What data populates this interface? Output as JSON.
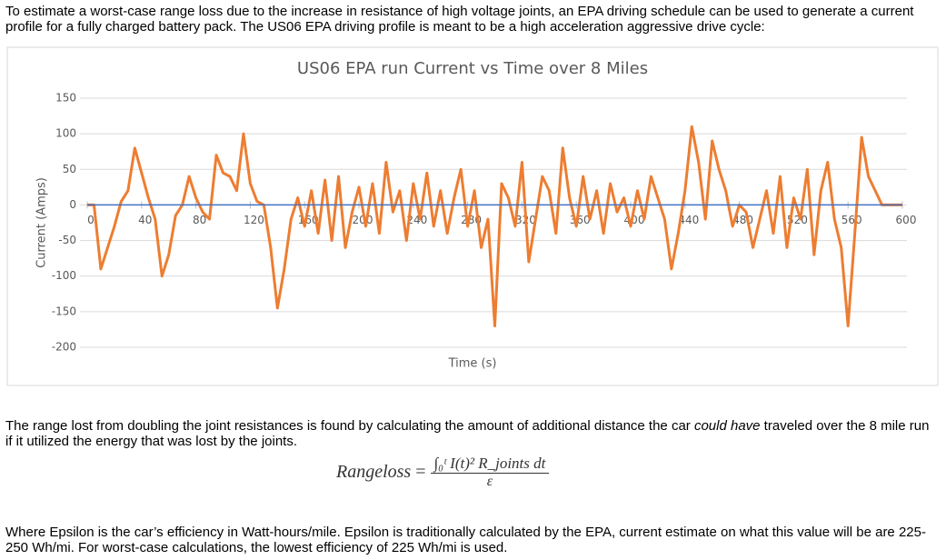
{
  "intro": "To estimate a worst-case range loss due to the increase in resistance of high voltage joints, an EPA driving schedule can be used to generate a current profile for a fully charged battery pack. The US06 EPA driving profile is meant to be a high acceleration aggressive drive cycle:",
  "chart_data": {
    "type": "line",
    "title": "US06 EPA run Current vs Time over 8 Miles",
    "x_label": "Time (s)",
    "y_label": "Current (Amps)",
    "x": [
      0,
      5,
      10,
      15,
      20,
      25,
      30,
      35,
      40,
      45,
      50,
      55,
      60,
      65,
      70,
      75,
      80,
      85,
      90,
      95,
      100,
      105,
      110,
      115,
      120,
      125,
      130,
      135,
      140,
      145,
      150,
      155,
      160,
      165,
      170,
      175,
      180,
      185,
      190,
      195,
      200,
      205,
      210,
      215,
      220,
      225,
      230,
      235,
      240,
      245,
      250,
      255,
      260,
      265,
      270,
      275,
      280,
      285,
      290,
      295,
      300,
      305,
      310,
      315,
      320,
      325,
      330,
      335,
      340,
      345,
      350,
      355,
      360,
      365,
      370,
      375,
      380,
      385,
      390,
      395,
      400,
      405,
      410,
      415,
      420,
      425,
      430,
      435,
      440,
      445,
      450,
      455,
      460,
      465,
      470,
      475,
      480,
      485,
      490,
      495,
      500,
      505,
      510,
      515,
      520,
      525,
      530,
      535,
      540,
      545,
      550,
      555,
      560,
      565,
      570,
      575,
      580,
      585,
      590,
      595,
      600
    ],
    "series": [
      {
        "color": "#ed7d31",
        "values": [
          0,
          0,
          -90,
          -60,
          -30,
          5,
          20,
          80,
          45,
          10,
          -20,
          -100,
          -70,
          -15,
          0,
          40,
          10,
          -10,
          -20,
          70,
          45,
          40,
          20,
          100,
          30,
          5,
          0,
          -60,
          -145,
          -90,
          -20,
          10,
          -30,
          20,
          -40,
          35,
          -50,
          40,
          -60,
          -10,
          25,
          -30,
          30,
          -40,
          60,
          -10,
          20,
          -50,
          30,
          -20,
          45,
          -30,
          20,
          -40,
          10,
          50,
          -30,
          20,
          -60,
          -20,
          -170,
          30,
          10,
          -30,
          60,
          -80,
          -20,
          40,
          20,
          -40,
          80,
          10,
          -30,
          40,
          -20,
          20,
          -40,
          30,
          -10,
          10,
          -30,
          20,
          -20,
          40,
          10,
          -20,
          -90,
          -40,
          20,
          110,
          60,
          -20,
          90,
          50,
          20,
          -30,
          0,
          -10,
          -60,
          -20,
          20,
          -40,
          40,
          -60,
          10,
          -20,
          50,
          -70,
          20,
          60,
          -20,
          -60,
          -170,
          -40,
          95,
          40,
          20,
          0,
          0,
          0,
          0
        ]
      },
      {
        "color": "#4472c4",
        "values": [
          0,
          0,
          0,
          0,
          0,
          0,
          0,
          0,
          0,
          0,
          0,
          0,
          0,
          0,
          0,
          0,
          0,
          0,
          0,
          0,
          0,
          0,
          0,
          0,
          0,
          0,
          0,
          0,
          0,
          0,
          0,
          0,
          0,
          0,
          0,
          0,
          0,
          0,
          0,
          0,
          0,
          0,
          0,
          0,
          0,
          0,
          0,
          0,
          0,
          0,
          0,
          0,
          0,
          0,
          0,
          0,
          0,
          0,
          0,
          0,
          0,
          0,
          0,
          0,
          0,
          0,
          0,
          0,
          0,
          0,
          0,
          0,
          0,
          0,
          0,
          0,
          0,
          0,
          0,
          0,
          0,
          0,
          0,
          0,
          0,
          0,
          0,
          0,
          0,
          0,
          0,
          0,
          0,
          0,
          0,
          0,
          0,
          0,
          0,
          0,
          0,
          0,
          0,
          0,
          0,
          0,
          0,
          0,
          0,
          0,
          0,
          0,
          0,
          0,
          0,
          0,
          0,
          0,
          0,
          0,
          0
        ]
      }
    ],
    "xlim": [
      0,
      600
    ],
    "xticks": [
      0,
      40,
      80,
      120,
      160,
      200,
      240,
      280,
      320,
      360,
      400,
      440,
      480,
      520,
      560,
      600
    ],
    "ylim": [
      -200,
      150
    ],
    "yticks": [
      -200,
      -150,
      -100,
      -50,
      0,
      50,
      100,
      150
    ],
    "grid": true
  },
  "para2": {
    "before": "The range lost from doubling the joint resistances is found by calculating the amount of additional distance the car ",
    "em": "could have",
    "after": " traveled over the 8 mile run if it utilized the energy that was lost by the joints."
  },
  "formula": {
    "lhs": "Rangeloss",
    "eq": "=",
    "numerator": "∫₀ᵗ I(t)² R_joints dt",
    "denominator": "ε"
  },
  "para3": "Where Epsilon is the car’s efficiency in Watt-hours/mile. Epsilon is traditionally calculated by the EPA, current estimate on what this value will be are 225-250 Wh/mi. For worst-case calculations, the lowest efficiency of 225 Wh/mi is used."
}
